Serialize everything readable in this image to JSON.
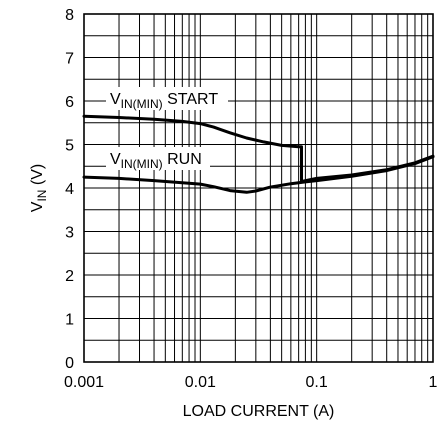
{
  "chart_data": {
    "type": "line",
    "x_scale": "log",
    "xlim": [
      0.001,
      1
    ],
    "ylim": [
      0,
      8
    ],
    "grid": true,
    "x_ticks": [
      "0.001",
      "0.01",
      "0.1",
      "1"
    ],
    "x_tick_values": [
      0.001,
      0.01,
      0.1,
      1
    ],
    "y_ticks": [
      "0",
      "1",
      "2",
      "3",
      "4",
      "5",
      "6",
      "7",
      "8"
    ],
    "y_tick_values": [
      0,
      1,
      2,
      3,
      4,
      5,
      6,
      7,
      8
    ],
    "xlabel": "LOAD CURRENT (A)",
    "ylabel": {
      "main": "V",
      "sub": "IN",
      "suffix": " (V)"
    },
    "series": [
      {
        "name": "VIN(MIN) START",
        "label": {
          "main": "V",
          "sub": "IN(MIN)",
          "suffix": " START"
        },
        "x": [
          0.001,
          0.002,
          0.004,
          0.007,
          0.01,
          0.013,
          0.018,
          0.025,
          0.035,
          0.05,
          0.07,
          0.074,
          0.074,
          0.1,
          0.2,
          0.4,
          0.7,
          1
        ],
        "y": [
          5.65,
          5.62,
          5.58,
          5.53,
          5.48,
          5.4,
          5.27,
          5.15,
          5.06,
          4.98,
          4.95,
          4.95,
          4.15,
          4.22,
          4.3,
          4.42,
          4.58,
          4.73
        ]
      },
      {
        "name": "VIN(MIN) RUN",
        "label": {
          "main": "V",
          "sub": "IN(MIN)",
          "suffix": " RUN"
        },
        "x": [
          0.001,
          0.002,
          0.004,
          0.007,
          0.01,
          0.013,
          0.018,
          0.025,
          0.03,
          0.04,
          0.06,
          0.08,
          0.1,
          0.2,
          0.4,
          0.7,
          1
        ],
        "y": [
          4.25,
          4.22,
          4.17,
          4.12,
          4.09,
          4.03,
          3.94,
          3.9,
          3.93,
          4.02,
          4.1,
          4.14,
          4.17,
          4.27,
          4.4,
          4.56,
          4.72
        ]
      }
    ]
  }
}
